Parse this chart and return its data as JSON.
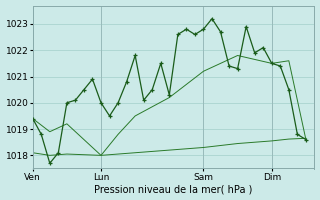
{
  "background_color": "#cceae8",
  "grid_color": "#aad4d0",
  "line_color_dark": "#1a5c1a",
  "line_color_mid": "#2a7a2a",
  "xlabel": "Pression niveau de la mer( hPa )",
  "ylim": [
    1017.5,
    1023.7
  ],
  "yticks": [
    1018,
    1019,
    1020,
    1021,
    1022,
    1023
  ],
  "day_labels": [
    "Ven",
    "Lun",
    "Sam",
    "Dim"
  ],
  "day_positions": [
    0,
    8,
    20,
    28
  ],
  "xlim": [
    0,
    33
  ],
  "series1_x": [
    0,
    1,
    2,
    3,
    4,
    5,
    6,
    7,
    8,
    9,
    10,
    11,
    12,
    13,
    14,
    15,
    16,
    17,
    18,
    19,
    20,
    21,
    22,
    23,
    24,
    25,
    26,
    27,
    28,
    29,
    30,
    31,
    32
  ],
  "series1_y": [
    1019.4,
    1018.8,
    1017.7,
    1018.1,
    1020.0,
    1020.1,
    1020.5,
    1020.9,
    1020.0,
    1019.5,
    1020.0,
    1020.8,
    1021.8,
    1020.1,
    1020.5,
    1021.5,
    1020.3,
    1022.6,
    1022.8,
    1022.6,
    1022.8,
    1023.2,
    1022.7,
    1021.4,
    1021.3,
    1022.9,
    1021.9,
    1022.1,
    1021.5,
    1021.4,
    1020.5,
    1018.8,
    1018.6
  ],
  "series2_x": [
    0,
    2,
    4,
    8,
    10,
    12,
    16,
    20,
    24,
    28,
    30,
    32
  ],
  "series2_y": [
    1019.4,
    1018.9,
    1019.2,
    1018.0,
    1018.8,
    1019.5,
    1020.2,
    1021.2,
    1021.8,
    1021.5,
    1021.6,
    1018.6
  ],
  "series3_x": [
    0,
    2,
    4,
    8,
    12,
    16,
    20,
    24,
    28,
    30,
    32
  ],
  "series3_y": [
    1018.1,
    1018.0,
    1018.05,
    1018.0,
    1018.1,
    1018.2,
    1018.3,
    1018.45,
    1018.55,
    1018.62,
    1018.65
  ]
}
